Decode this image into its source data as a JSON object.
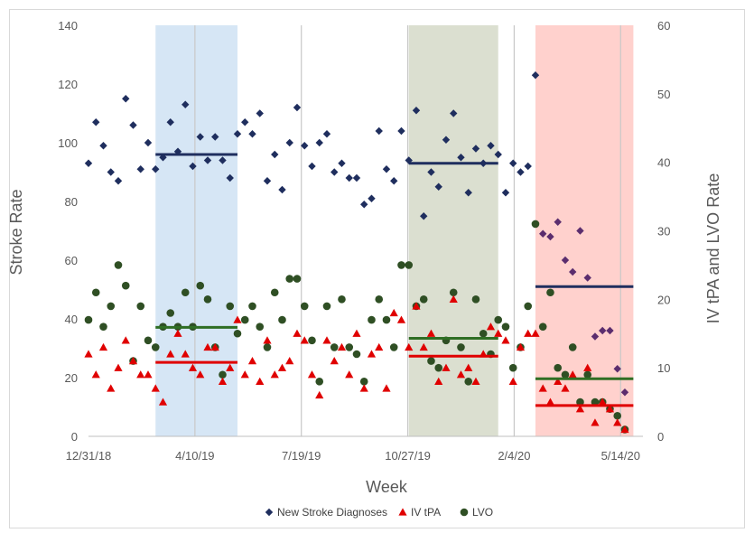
{
  "chart_data": {
    "type": "scatter",
    "xlabel": "Week",
    "ylabel_left": "Stroke Rate",
    "ylabel_right": "IV tPA and LVO Rate",
    "xlim": [
      "2018-12-31",
      "2020-06-04"
    ],
    "ylim_left": [
      0,
      140
    ],
    "ylim_right": [
      0,
      60
    ],
    "x_ticks": [
      "12/31/18",
      "4/10/19",
      "7/19/19",
      "10/27/19",
      "2/4/20",
      "5/14/20"
    ],
    "y_ticks_left": [
      "0",
      "20",
      "40",
      "60",
      "80",
      "100",
      "120",
      "140"
    ],
    "y_ticks_right": [
      "0",
      "10",
      "20",
      "30",
      "40",
      "50",
      "60"
    ],
    "grid": "vertical lines at x ticks",
    "legend_position": "bottom",
    "shaded_periods": [
      {
        "start": "2019-03-04",
        "end": "2019-05-20",
        "color": "#cfe2f3"
      },
      {
        "start": "2019-10-28",
        "end": "2020-01-20",
        "color": "#d5d9c8"
      },
      {
        "start": "2020-02-24",
        "end": "2020-05-26",
        "color": "#ffc9c4"
      }
    ],
    "series": [
      {
        "name": "New Stroke Diagnoses",
        "axis": "left",
        "color": "#1f2e5e",
        "marker": "diamond",
        "points": [
          [
            "2018-12-31",
            93
          ],
          [
            "2019-01-07",
            107
          ],
          [
            "2019-01-14",
            99
          ],
          [
            "2019-01-21",
            90
          ],
          [
            "2019-01-28",
            87
          ],
          [
            "2019-02-04",
            115
          ],
          [
            "2019-02-11",
            106
          ],
          [
            "2019-02-18",
            91
          ],
          [
            "2019-02-25",
            100
          ],
          [
            "2019-03-04",
            91
          ],
          [
            "2019-03-11",
            95
          ],
          [
            "2019-03-18",
            107
          ],
          [
            "2019-03-25",
            97
          ],
          [
            "2019-04-01",
            113
          ],
          [
            "2019-04-08",
            92
          ],
          [
            "2019-04-15",
            102
          ],
          [
            "2019-04-22",
            94
          ],
          [
            "2019-04-29",
            102
          ],
          [
            "2019-05-06",
            94
          ],
          [
            "2019-05-13",
            88
          ],
          [
            "2019-05-20",
            103
          ],
          [
            "2019-05-27",
            107
          ],
          [
            "2019-06-03",
            103
          ],
          [
            "2019-06-10",
            110
          ],
          [
            "2019-06-17",
            87
          ],
          [
            "2019-06-24",
            96
          ],
          [
            "2019-07-01",
            84
          ],
          [
            "2019-07-08",
            100
          ],
          [
            "2019-07-15",
            112
          ],
          [
            "2019-07-22",
            99
          ],
          [
            "2019-07-29",
            92
          ],
          [
            "2019-08-05",
            100
          ],
          [
            "2019-08-12",
            103
          ],
          [
            "2019-08-19",
            90
          ],
          [
            "2019-08-26",
            93
          ],
          [
            "2019-09-02",
            88
          ],
          [
            "2019-09-09",
            88
          ],
          [
            "2019-09-16",
            79
          ],
          [
            "2019-09-23",
            81
          ],
          [
            "2019-09-30",
            104
          ],
          [
            "2019-10-07",
            91
          ],
          [
            "2019-10-14",
            87
          ],
          [
            "2019-10-21",
            104
          ],
          [
            "2019-10-28",
            94
          ],
          [
            "2019-11-04",
            111
          ],
          [
            "2019-11-11",
            75
          ],
          [
            "2019-11-18",
            90
          ],
          [
            "2019-11-25",
            85
          ],
          [
            "2019-12-02",
            101
          ],
          [
            "2019-12-09",
            110
          ],
          [
            "2019-12-16",
            95
          ],
          [
            "2019-12-23",
            83
          ],
          [
            "2019-12-30",
            98
          ],
          [
            "2020-01-06",
            93
          ],
          [
            "2020-01-13",
            99
          ],
          [
            "2020-01-20",
            96
          ],
          [
            "2020-01-27",
            83
          ],
          [
            "2020-02-03",
            93
          ],
          [
            "2020-02-10",
            90
          ],
          [
            "2020-02-17",
            92
          ],
          [
            "2020-02-24",
            123
          ]
        ]
      },
      {
        "name": "New Stroke Diagnoses (lockdown period)",
        "axis": "left",
        "color": "#5b2d6e",
        "marker": "diamond",
        "points": [
          [
            "2020-03-02",
            69
          ],
          [
            "2020-03-09",
            68
          ],
          [
            "2020-03-16",
            73
          ],
          [
            "2020-03-23",
            60
          ],
          [
            "2020-03-30",
            56
          ],
          [
            "2020-04-06",
            70
          ],
          [
            "2020-04-13",
            54
          ],
          [
            "2020-04-20",
            34
          ],
          [
            "2020-04-27",
            36
          ],
          [
            "2020-05-04",
            36
          ],
          [
            "2020-05-11",
            23
          ],
          [
            "2020-05-18",
            15
          ]
        ]
      },
      {
        "name": "IV tPA",
        "axis": "right",
        "color": "#e00000",
        "marker": "triangle",
        "points": [
          [
            "2018-12-31",
            12
          ],
          [
            "2019-01-07",
            9
          ],
          [
            "2019-01-14",
            13
          ],
          [
            "2019-01-21",
            7
          ],
          [
            "2019-01-28",
            10
          ],
          [
            "2019-02-04",
            14
          ],
          [
            "2019-02-11",
            11
          ],
          [
            "2019-02-18",
            9
          ],
          [
            "2019-02-25",
            9
          ],
          [
            "2019-03-04",
            7
          ],
          [
            "2019-03-11",
            5
          ],
          [
            "2019-03-18",
            12
          ],
          [
            "2019-03-25",
            15
          ],
          [
            "2019-04-01",
            12
          ],
          [
            "2019-04-08",
            10
          ],
          [
            "2019-04-15",
            9
          ],
          [
            "2019-04-22",
            13
          ],
          [
            "2019-04-29",
            13
          ],
          [
            "2019-05-06",
            8
          ],
          [
            "2019-05-13",
            10
          ],
          [
            "2019-05-20",
            17
          ],
          [
            "2019-05-27",
            9
          ],
          [
            "2019-06-03",
            11
          ],
          [
            "2019-06-10",
            8
          ],
          [
            "2019-06-17",
            14
          ],
          [
            "2019-06-24",
            9
          ],
          [
            "2019-07-01",
            10
          ],
          [
            "2019-07-08",
            11
          ],
          [
            "2019-07-15",
            15
          ],
          [
            "2019-07-22",
            14
          ],
          [
            "2019-07-29",
            9
          ],
          [
            "2019-08-05",
            6
          ],
          [
            "2019-08-12",
            14
          ],
          [
            "2019-08-19",
            11
          ],
          [
            "2019-08-26",
            13
          ],
          [
            "2019-09-02",
            9
          ],
          [
            "2019-09-09",
            15
          ],
          [
            "2019-09-16",
            7
          ],
          [
            "2019-09-23",
            12
          ],
          [
            "2019-09-30",
            13
          ],
          [
            "2019-10-07",
            7
          ],
          [
            "2019-10-14",
            18
          ],
          [
            "2019-10-21",
            17
          ],
          [
            "2019-10-28",
            13
          ],
          [
            "2019-11-04",
            19
          ],
          [
            "2019-11-11",
            13
          ],
          [
            "2019-11-18",
            15
          ],
          [
            "2019-11-25",
            8
          ],
          [
            "2019-12-02",
            10
          ],
          [
            "2019-12-09",
            20
          ],
          [
            "2019-12-16",
            9
          ],
          [
            "2019-12-23",
            10
          ],
          [
            "2019-12-30",
            8
          ],
          [
            "2020-01-06",
            12
          ],
          [
            "2020-01-13",
            16
          ],
          [
            "2020-01-20",
            15
          ],
          [
            "2020-01-27",
            14
          ],
          [
            "2020-02-03",
            8
          ],
          [
            "2020-02-10",
            13
          ],
          [
            "2020-02-17",
            15
          ],
          [
            "2020-02-24",
            15
          ],
          [
            "2020-03-02",
            7
          ],
          [
            "2020-03-09",
            5
          ],
          [
            "2020-03-16",
            8
          ],
          [
            "2020-03-23",
            7
          ],
          [
            "2020-03-30",
            9
          ],
          [
            "2020-04-06",
            4
          ],
          [
            "2020-04-13",
            10
          ],
          [
            "2020-04-20",
            2
          ],
          [
            "2020-04-27",
            5
          ],
          [
            "2020-05-04",
            4
          ],
          [
            "2020-05-11",
            2
          ],
          [
            "2020-05-18",
            1
          ]
        ]
      },
      {
        "name": "LVO",
        "axis": "right",
        "color": "#2f4f24",
        "marker": "circle",
        "points": [
          [
            "2018-12-31",
            17
          ],
          [
            "2019-01-07",
            21
          ],
          [
            "2019-01-14",
            16
          ],
          [
            "2019-01-21",
            19
          ],
          [
            "2019-01-28",
            25
          ],
          [
            "2019-02-04",
            22
          ],
          [
            "2019-02-11",
            11
          ],
          [
            "2019-02-18",
            19
          ],
          [
            "2019-02-25",
            14
          ],
          [
            "2019-03-04",
            13
          ],
          [
            "2019-03-11",
            16
          ],
          [
            "2019-03-18",
            18
          ],
          [
            "2019-03-25",
            16
          ],
          [
            "2019-04-01",
            21
          ],
          [
            "2019-04-08",
            16
          ],
          [
            "2019-04-15",
            22
          ],
          [
            "2019-04-22",
            20
          ],
          [
            "2019-04-29",
            13
          ],
          [
            "2019-05-06",
            9
          ],
          [
            "2019-05-13",
            19
          ],
          [
            "2019-05-20",
            15
          ],
          [
            "2019-05-27",
            17
          ],
          [
            "2019-06-03",
            19
          ],
          [
            "2019-06-10",
            16
          ],
          [
            "2019-06-17",
            13
          ],
          [
            "2019-06-24",
            21
          ],
          [
            "2019-07-01",
            17
          ],
          [
            "2019-07-08",
            23
          ],
          [
            "2019-07-15",
            23
          ],
          [
            "2019-07-22",
            19
          ],
          [
            "2019-07-29",
            14
          ],
          [
            "2019-08-05",
            8
          ],
          [
            "2019-08-12",
            19
          ],
          [
            "2019-08-19",
            13
          ],
          [
            "2019-08-26",
            20
          ],
          [
            "2019-09-02",
            13
          ],
          [
            "2019-09-09",
            12
          ],
          [
            "2019-09-16",
            8
          ],
          [
            "2019-09-23",
            17
          ],
          [
            "2019-09-30",
            20
          ],
          [
            "2019-10-07",
            17
          ],
          [
            "2019-10-14",
            13
          ],
          [
            "2019-10-21",
            25
          ],
          [
            "2019-10-28",
            25
          ],
          [
            "2019-11-04",
            19
          ],
          [
            "2019-11-11",
            20
          ],
          [
            "2019-11-18",
            11
          ],
          [
            "2019-11-25",
            10
          ],
          [
            "2019-12-02",
            14
          ],
          [
            "2019-12-09",
            21
          ],
          [
            "2019-12-16",
            13
          ],
          [
            "2019-12-23",
            8
          ],
          [
            "2019-12-30",
            20
          ],
          [
            "2020-01-06",
            15
          ],
          [
            "2020-01-13",
            12
          ],
          [
            "2020-01-20",
            17
          ],
          [
            "2020-01-27",
            16
          ],
          [
            "2020-02-03",
            10
          ],
          [
            "2020-02-10",
            13
          ],
          [
            "2020-02-17",
            19
          ],
          [
            "2020-02-24",
            31
          ],
          [
            "2020-03-02",
            16
          ],
          [
            "2020-03-09",
            21
          ],
          [
            "2020-03-16",
            10
          ],
          [
            "2020-03-23",
            9
          ],
          [
            "2020-03-30",
            13
          ],
          [
            "2020-04-06",
            5
          ],
          [
            "2020-04-13",
            9
          ],
          [
            "2020-04-20",
            5
          ],
          [
            "2020-04-27",
            5
          ],
          [
            "2020-05-04",
            4
          ],
          [
            "2020-05-11",
            3
          ],
          [
            "2020-05-18",
            1
          ]
        ]
      }
    ],
    "averages": [
      {
        "series": "New Stroke Diagnoses",
        "axis": "left",
        "value": 96,
        "start": "2019-03-04",
        "end": "2019-05-20",
        "color": "#1f2e5e"
      },
      {
        "series": "New Stroke Diagnoses",
        "axis": "left",
        "value": 93,
        "start": "2019-10-28",
        "end": "2020-01-20",
        "color": "#1f2e5e"
      },
      {
        "series": "New Stroke Diagnoses",
        "axis": "left",
        "value": 51,
        "start": "2020-02-24",
        "end": "2020-05-26",
        "color": "#1f2e5e"
      },
      {
        "series": "IV tPA",
        "axis": "right",
        "value": 10.8,
        "start": "2019-03-04",
        "end": "2019-05-20",
        "color": "#e00000"
      },
      {
        "series": "IV tPA",
        "axis": "right",
        "value": 11.7,
        "start": "2019-10-28",
        "end": "2020-01-20",
        "color": "#e00000"
      },
      {
        "series": "IV tPA",
        "axis": "right",
        "value": 4.5,
        "start": "2020-02-24",
        "end": "2020-05-26",
        "color": "#e00000"
      },
      {
        "series": "LVO",
        "axis": "right",
        "value": 15.9,
        "start": "2019-03-04",
        "end": "2019-05-20",
        "color": "#2f6e24"
      },
      {
        "series": "LVO",
        "axis": "right",
        "value": 14.3,
        "start": "2019-10-28",
        "end": "2020-01-20",
        "color": "#2f6e24"
      },
      {
        "series": "LVO",
        "axis": "right",
        "value": 8.4,
        "start": "2020-02-24",
        "end": "2020-05-26",
        "color": "#2f6e24"
      }
    ],
    "legend": [
      {
        "label": "New Stroke Diagnoses",
        "marker": "diamond",
        "color": "#1f2e5e"
      },
      {
        "label": "IV tPA",
        "marker": "triangle",
        "color": "#e00000"
      },
      {
        "label": "LVO",
        "marker": "circle",
        "color": "#2f4f24"
      }
    ]
  }
}
